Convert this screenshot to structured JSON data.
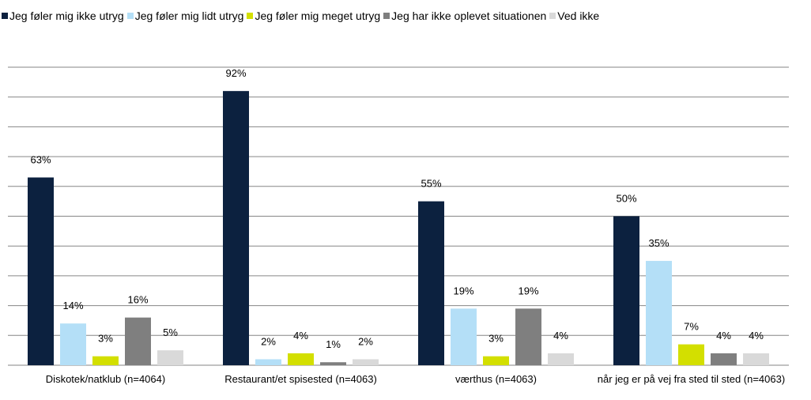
{
  "chart_data": {
    "type": "bar",
    "categories": [
      "Diskotek/natklub (n=4064)",
      "Restaurant/et spisested (n=4063)",
      "værthus (n=4063)",
      "når jeg er på vej fra sted til sted (n=4063)"
    ],
    "series": [
      {
        "name": "Jeg føler mig ikke utryg",
        "color": "#0c213f",
        "values": [
          63,
          92,
          55,
          50
        ],
        "value_labels": [
          "63%",
          "92%",
          "55%",
          "50%"
        ]
      },
      {
        "name": "Jeg føler mig lidt utryg",
        "color": "#b4dff7",
        "values": [
          14,
          2,
          19,
          35
        ],
        "value_labels": [
          "14%",
          "2%",
          "19%",
          "35%"
        ]
      },
      {
        "name": "Jeg føler mig meget utryg",
        "color": "#d3df00",
        "values": [
          3,
          4,
          3,
          7
        ],
        "value_labels": [
          "3%",
          "4%",
          "3%",
          "7%"
        ]
      },
      {
        "name": "Jeg har ikke oplevet situationen",
        "color": "#7f7f7f",
        "values": [
          16,
          1,
          19,
          4
        ],
        "value_labels": [
          "16%",
          "1%",
          "19%",
          "4%"
        ]
      },
      {
        "name": "Ved ikke",
        "color": "#d9d9d9",
        "values": [
          5,
          2,
          4,
          4
        ],
        "value_labels": [
          "5%",
          "2%",
          "4%",
          "4%"
        ]
      }
    ],
    "ylim": [
      0,
      100
    ],
    "yticks": [
      0,
      10,
      20,
      30,
      40,
      50,
      60,
      70,
      80,
      90,
      100
    ],
    "grid": true,
    "legend": "top"
  }
}
